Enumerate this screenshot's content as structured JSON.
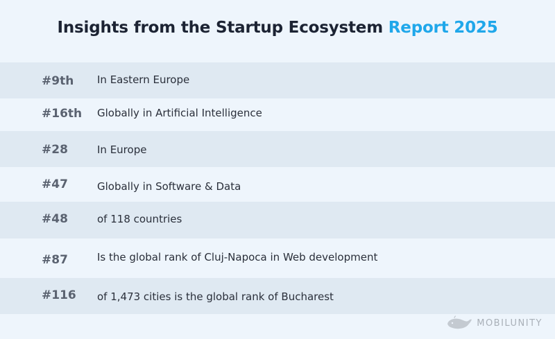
{
  "title": {
    "main": "Insights from the Startup Ecosystem",
    "accent": "Report 2025"
  },
  "rows": [
    {
      "rank": "#9th",
      "text": "In Eastern Europe"
    },
    {
      "rank": "#16th",
      "text": "Globally in Artificial Intelligence"
    },
    {
      "rank": "#28",
      "text": "In Europe"
    },
    {
      "rank": "#47",
      "text": "Globally in Software & Data"
    },
    {
      "rank": "#48",
      "text": "of 118 countries"
    },
    {
      "rank": "#87",
      "text": "Is the global rank of Cluj-Napoca in Web development"
    },
    {
      "rank": "#116",
      "text": "of 1,473 cities is the global rank of Bucharest"
    }
  ],
  "brand": {
    "name": "MOBILUNITY",
    "logo_icon": "whale-logo-icon"
  },
  "colors": {
    "accent": "#1fa7ea",
    "row_shaded": "#dfe9f2",
    "background": "#eef5fc"
  }
}
